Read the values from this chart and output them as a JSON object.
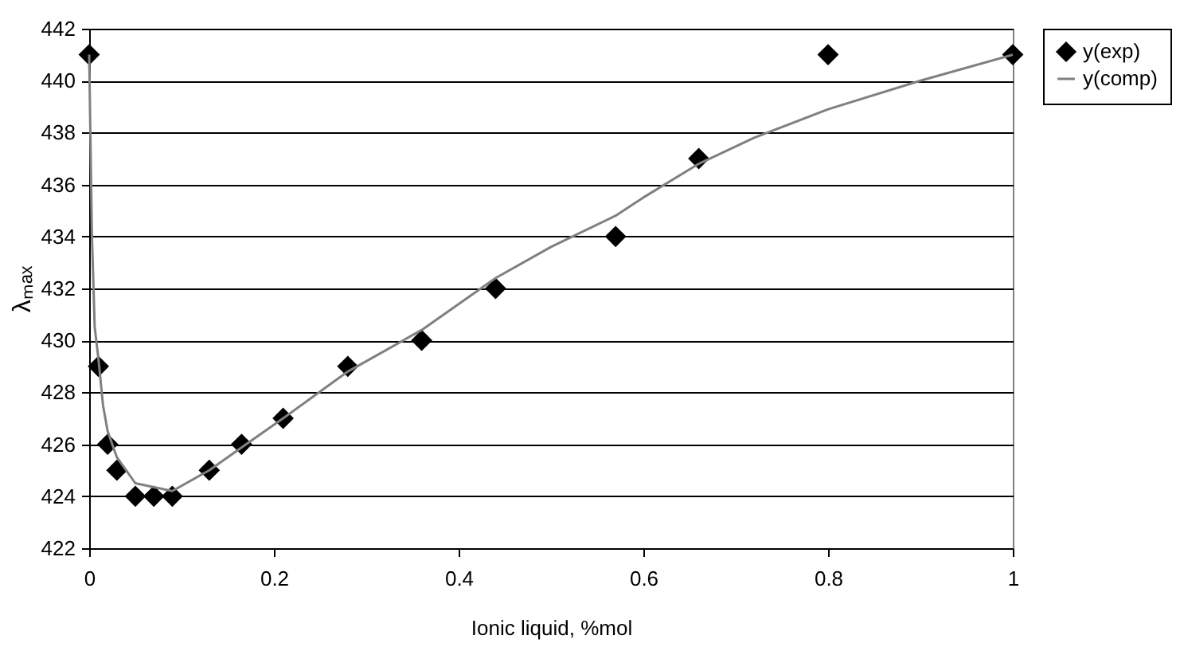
{
  "chart_data": {
    "type": "scatter",
    "xlabel": "Ionic liquid, %mol",
    "ylabel": "λₘₐₓ",
    "xlim": [
      0,
      1
    ],
    "xticks": [
      0,
      0.2,
      0.4,
      0.6,
      0.8,
      1
    ],
    "ylim": [
      422,
      442
    ],
    "yticks": [
      422,
      424,
      426,
      428,
      430,
      432,
      434,
      436,
      438,
      440,
      442
    ],
    "grid": "y",
    "legend": "right",
    "series": [
      {
        "name": "y(exp)",
        "type": "scatter",
        "marker": "diamond",
        "color": "#000000",
        "x": [
          0,
          0.01,
          0.02,
          0.03,
          0.05,
          0.07,
          0.09,
          0.13,
          0.165,
          0.21,
          0.28,
          0.36,
          0.44,
          0.57,
          0.66,
          0.8,
          1
        ],
        "values": [
          441,
          429,
          426,
          425,
          424,
          424,
          424,
          425,
          426,
          427,
          429,
          430,
          432,
          434,
          437,
          441,
          441
        ]
      },
      {
        "name": "y(comp)",
        "type": "line",
        "marker": "none",
        "line_style": "solid",
        "color": "#808080",
        "x": [
          0,
          0.003,
          0.006,
          0.01,
          0.015,
          0.02,
          0.03,
          0.05,
          0.09,
          0.13,
          0.17,
          0.21,
          0.28,
          0.36,
          0.44,
          0.5,
          0.57,
          0.6,
          0.66,
          0.72,
          0.8,
          0.9,
          1
        ],
        "values": [
          441,
          434,
          430.5,
          429.3,
          427.5,
          426.5,
          425.5,
          424.5,
          424.2,
          425,
          426,
          427,
          428.8,
          430.4,
          432.4,
          433.6,
          434.8,
          435.5,
          436.8,
          437.8,
          438.9,
          440,
          441
        ]
      }
    ]
  }
}
